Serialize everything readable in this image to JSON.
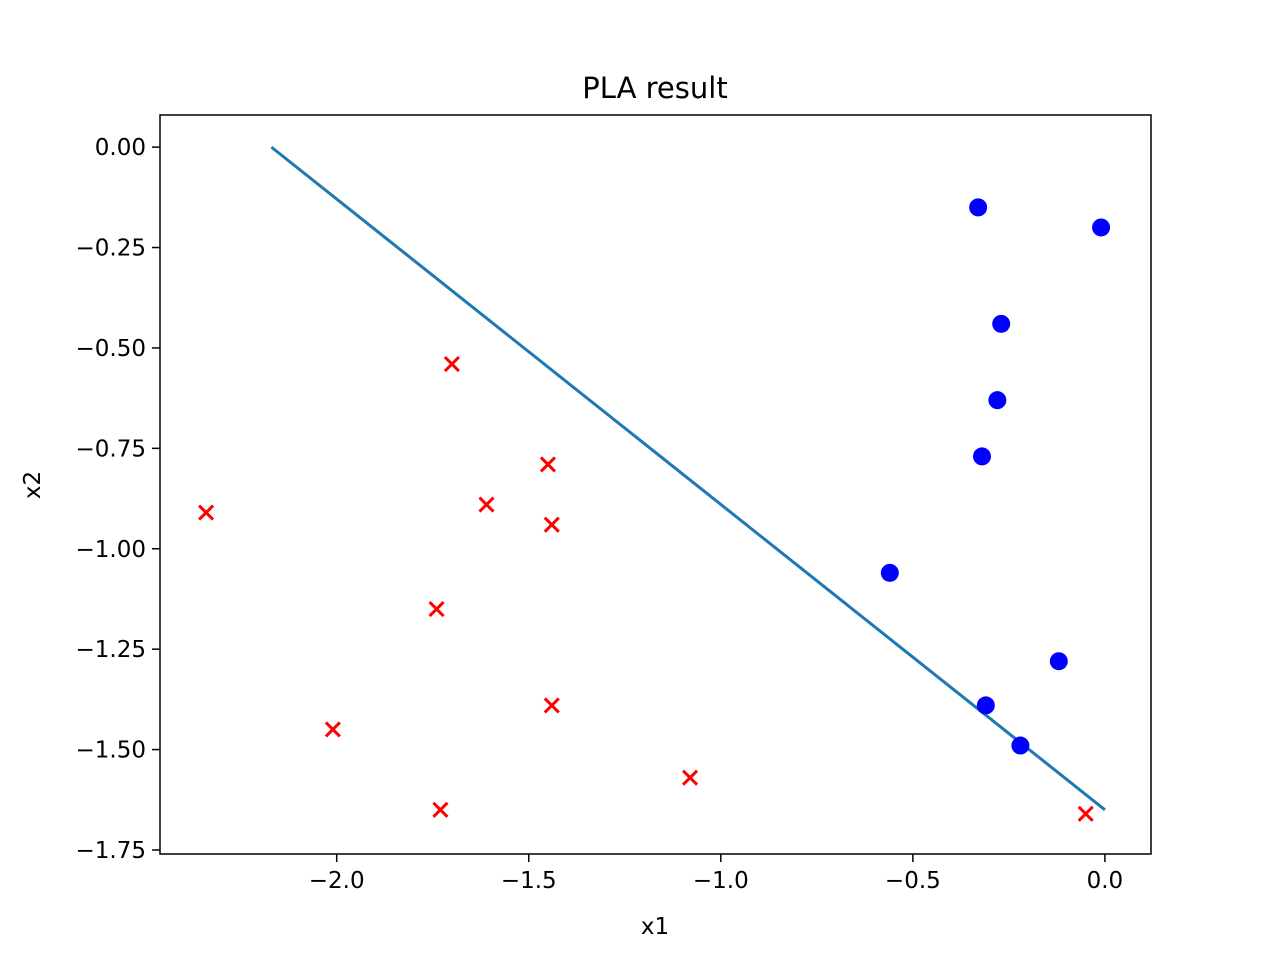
{
  "chart_data": {
    "type": "scatter",
    "title": "PLA result",
    "xlabel": "x1",
    "ylabel": "x2",
    "xlim": [
      -2.46,
      0.12
    ],
    "ylim": [
      -1.76,
      0.08
    ],
    "grid": false,
    "legend": "none",
    "x_ticks": [
      {
        "value": -2.0,
        "label": "−2.0"
      },
      {
        "value": -1.5,
        "label": "−1.5"
      },
      {
        "value": -1.0,
        "label": "−1.0"
      },
      {
        "value": -0.5,
        "label": "−0.5"
      },
      {
        "value": 0.0,
        "label": "0.0"
      }
    ],
    "y_ticks": [
      {
        "value": 0.0,
        "label": "0.00"
      },
      {
        "value": -0.25,
        "label": "−0.25"
      },
      {
        "value": -0.5,
        "label": "−0.50"
      },
      {
        "value": -0.75,
        "label": "−0.75"
      },
      {
        "value": -1.0,
        "label": "−1.00"
      },
      {
        "value": -1.25,
        "label": "−1.25"
      },
      {
        "value": -1.5,
        "label": "−1.50"
      },
      {
        "value": -1.75,
        "label": "−1.75"
      }
    ],
    "series": [
      {
        "marker": "x",
        "color": "#ff0000",
        "points": [
          [
            -1.7,
            -0.54
          ],
          [
            -1.45,
            -0.79
          ],
          [
            -1.61,
            -0.89
          ],
          [
            -1.44,
            -0.94
          ],
          [
            -2.34,
            -0.91
          ],
          [
            -1.74,
            -1.15
          ],
          [
            -1.44,
            -1.39
          ],
          [
            -2.01,
            -1.45
          ],
          [
            -1.08,
            -1.57
          ],
          [
            -1.73,
            -1.65
          ],
          [
            -0.05,
            -1.66
          ]
        ]
      },
      {
        "marker": "circle",
        "color": "#0000ff",
        "points": [
          [
            -0.33,
            -0.15
          ],
          [
            -0.01,
            -0.2
          ],
          [
            -0.27,
            -0.44
          ],
          [
            -0.28,
            -0.63
          ],
          [
            -0.32,
            -0.77
          ],
          [
            -0.56,
            -1.06
          ],
          [
            -0.12,
            -1.28
          ],
          [
            -0.31,
            -1.39
          ],
          [
            -0.22,
            -1.49
          ]
        ]
      }
    ],
    "line": {
      "color": "#1f77b4",
      "x": [
        -2.17,
        0.0
      ],
      "y": [
        0.0,
        -1.65
      ]
    }
  }
}
